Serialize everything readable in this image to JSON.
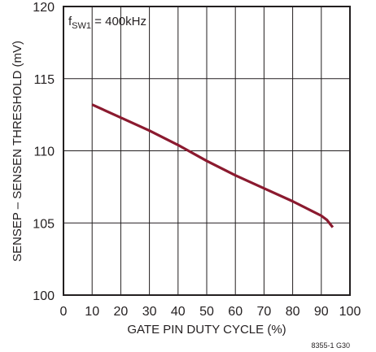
{
  "chart_data": {
    "type": "line",
    "title": "",
    "xlabel": "GATE PIN DUTY CYCLE (%)",
    "ylabel": "SENSEP – SENSEN THRESHOLD (mV)",
    "xlim": [
      0,
      100
    ],
    "ylim": [
      100,
      120
    ],
    "x_ticks": [
      0,
      10,
      20,
      30,
      40,
      50,
      60,
      70,
      80,
      90,
      100
    ],
    "y_ticks": [
      100,
      105,
      110,
      115,
      120
    ],
    "grid": true,
    "annotation": {
      "main": "f",
      "sub": "SW1",
      "rest": " = 400kHz"
    },
    "figure_id": "8355-1 G30",
    "line_color": "#8b1a2f",
    "series": [
      {
        "x": [
          10,
          20,
          30,
          40,
          50,
          60,
          70,
          80,
          85,
          90,
          92,
          94
        ],
        "y": [
          113.2,
          112.3,
          111.4,
          110.4,
          109.3,
          108.3,
          107.4,
          106.5,
          106.0,
          105.5,
          105.2,
          104.7
        ]
      }
    ]
  }
}
